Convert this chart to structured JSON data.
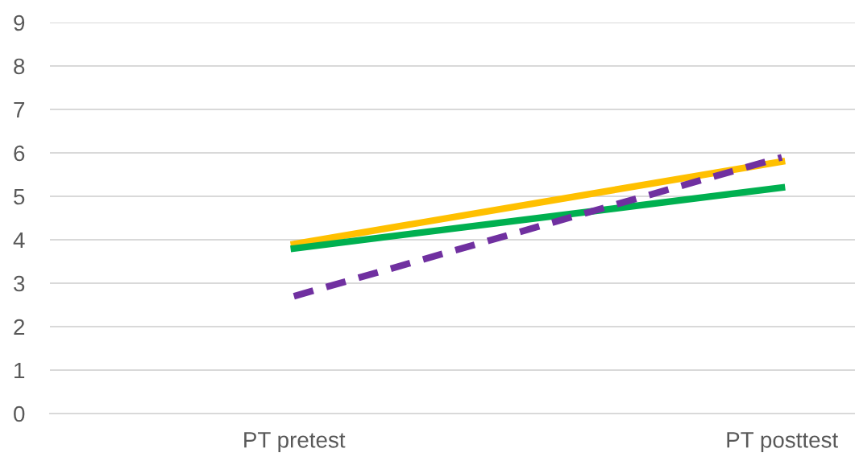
{
  "chart_data": {
    "type": "line",
    "categories": [
      "PT pretest",
      "PT posttest"
    ],
    "series": [
      {
        "color": "#ffc000",
        "values": [
          3.9,
          5.8
        ]
      },
      {
        "color": "#00b050",
        "values": [
          3.8,
          5.2
        ]
      },
      {
        "color": "#7030a0",
        "values": [
          2.7,
          5.9
        ],
        "line_style": "dashed"
      }
    ],
    "ylim": [
      0,
      9
    ],
    "yticks": [
      0,
      1,
      2,
      3,
      4,
      5,
      6,
      7,
      8,
      9
    ],
    "grid": "y",
    "legend": false,
    "marker": "none"
  }
}
